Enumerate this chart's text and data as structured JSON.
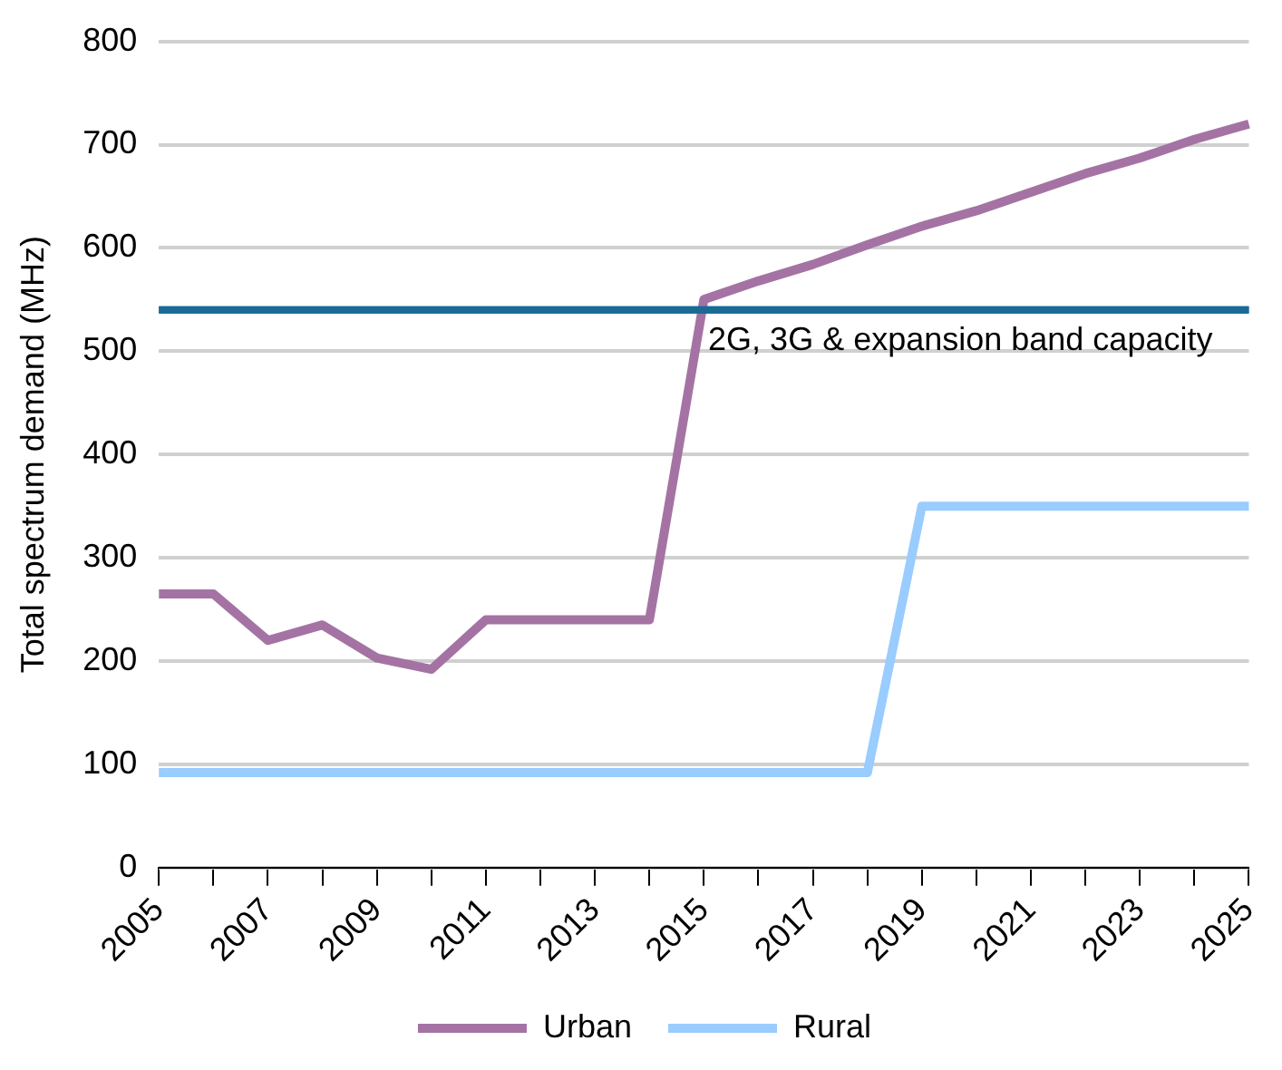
{
  "chart_data": {
    "type": "line",
    "ylabel": "Total spectrum demand (MHz)",
    "categories": [
      "2005",
      null,
      "2007",
      null,
      "2009",
      null,
      "2011",
      null,
      "2013",
      null,
      "2015",
      null,
      "2017",
      null,
      "2019",
      null,
      "2021",
      null,
      "2023",
      null,
      "2025"
    ],
    "series": [
      {
        "name": "Urban",
        "color": "#a473a4",
        "values": [
          265,
          265,
          220,
          235,
          203,
          192,
          240,
          240,
          240,
          240,
          550,
          568,
          584,
          603,
          621,
          636,
          654,
          672,
          687,
          705,
          720
        ]
      },
      {
        "name": "Rural",
        "color": "#99ccff",
        "values": [
          92,
          92,
          92,
          92,
          92,
          92,
          92,
          92,
          92,
          92,
          92,
          92,
          92,
          92,
          350,
          350,
          350,
          350,
          350,
          350,
          350
        ]
      }
    ],
    "ref_lines": [
      {
        "axis": "y",
        "value": 540,
        "label": "2G, 3G & expansion band capacity",
        "color": "#1a6a96"
      }
    ],
    "ylim": [
      0,
      800
    ],
    "yticks": [
      0,
      100,
      200,
      300,
      400,
      500,
      600,
      700,
      800
    ],
    "grid": "y",
    "legend": "bottom",
    "marker": "none",
    "line_style": "solid"
  }
}
